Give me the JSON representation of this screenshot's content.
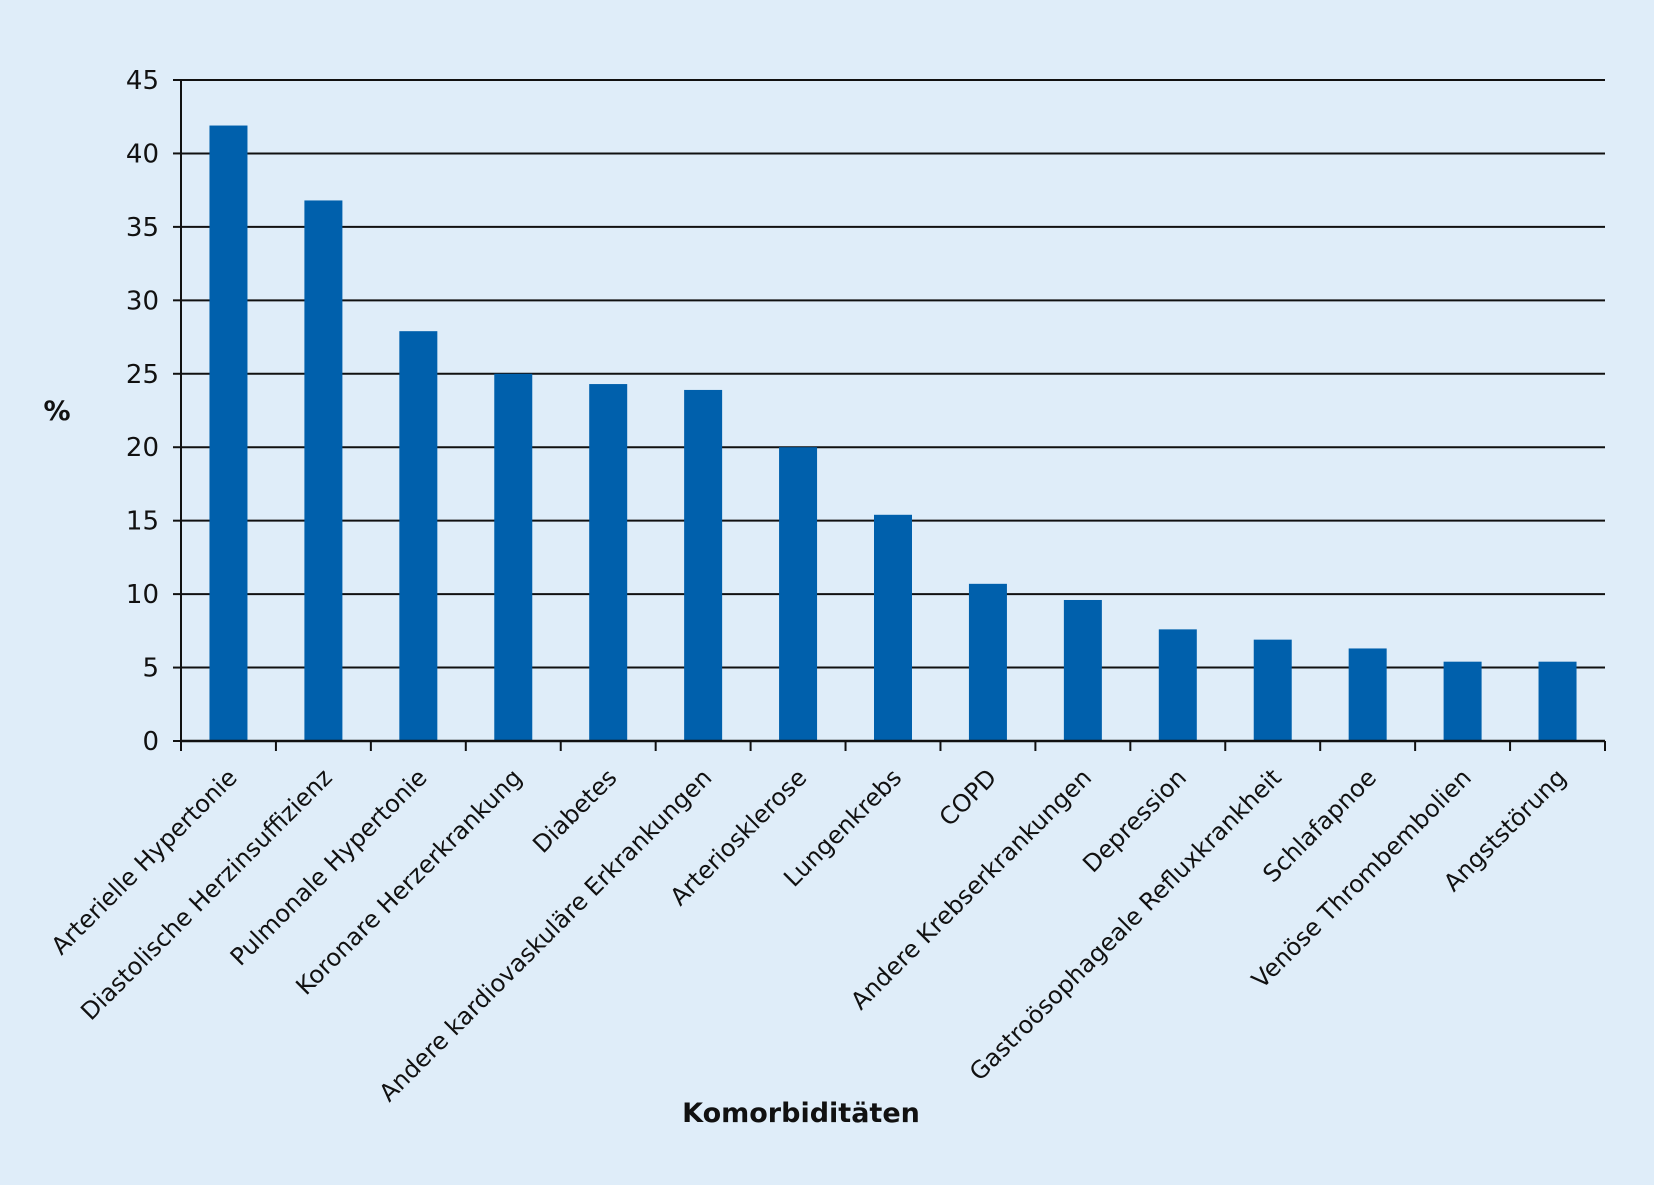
{
  "chart_data": {
    "type": "bar",
    "ylabel": "%",
    "xlabel": "Komorbiditäten",
    "ylim": [
      0,
      45
    ],
    "yticks": [
      0,
      5,
      10,
      15,
      20,
      25,
      30,
      35,
      40,
      45
    ],
    "grid": true,
    "bar_color": "#0060ac",
    "categories": [
      "Arterielle Hypertonie",
      "Diastolische Herzinsuffizienz",
      "Pulmonale Hypertonie",
      "Koronare Herzerkrankung",
      "Diabetes",
      "Andere kardiovaskuläre Erkrankungen",
      "Arteriosklerose",
      "Lungenkrebs",
      "COPD",
      "Andere Krebserkrankungen",
      "Depression",
      "Gastroösophageale Refluxkrankheit",
      "Schlafapnoe",
      "Venöse Thrombembolien",
      "Angststörung"
    ],
    "values": [
      41.9,
      36.8,
      27.9,
      25.0,
      24.3,
      23.9,
      20.0,
      15.4,
      10.7,
      9.6,
      7.6,
      6.9,
      6.3,
      5.4,
      5.4
    ]
  }
}
